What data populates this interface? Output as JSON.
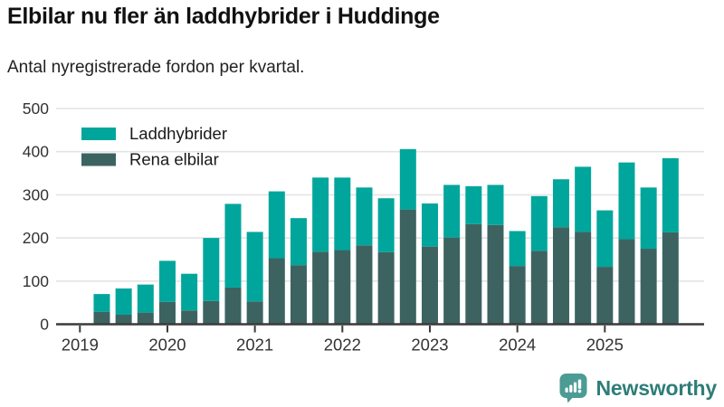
{
  "header": {
    "title": "Elbilar nu fler än laddhybrider i Huddinge",
    "subtitle": "Antal nyregistrerade fordon per kvartal."
  },
  "legend": {
    "items": [
      {
        "label": "Laddhybrider",
        "color": "#00a69c"
      },
      {
        "label": "Rena elbilar",
        "color": "#3d6361"
      }
    ]
  },
  "chart_data": {
    "type": "bar",
    "stacked": true,
    "title": "Elbilar nu fler än laddhybrider i Huddinge",
    "subtitle": "Antal nyregistrerade fordon per kvartal.",
    "xlabel": "",
    "ylabel": "",
    "ylim": [
      0,
      500
    ],
    "yticks": [
      0,
      100,
      200,
      300,
      400,
      500
    ],
    "xticks": [
      "2019",
      "2020",
      "2021",
      "2022",
      "2023",
      "2024",
      "2025"
    ],
    "grid": true,
    "legend_position": "top-left",
    "categories": [
      "2019 Q2",
      "2019 Q3",
      "2019 Q4",
      "2020 Q1",
      "2020 Q2",
      "2020 Q3",
      "2020 Q4",
      "2021 Q1",
      "2021 Q2",
      "2021 Q3",
      "2021 Q4",
      "2022 Q1",
      "2022 Q2",
      "2022 Q3",
      "2022 Q4",
      "2023 Q1",
      "2023 Q2",
      "2023 Q3",
      "2023 Q4",
      "2024 Q1",
      "2024 Q2",
      "2024 Q3",
      "2024 Q4",
      "2025 Q1",
      "2025 Q2",
      "2025 Q3",
      "2025 Q4"
    ],
    "series": [
      {
        "name": "Rena elbilar",
        "color": "#3d6361",
        "stack_position": "bottom",
        "values": [
          29,
          22,
          27,
          52,
          32,
          54,
          85,
          53,
          153,
          137,
          168,
          172,
          183,
          167,
          266,
          180,
          201,
          232,
          230,
          135,
          170,
          225,
          214,
          133,
          197,
          175,
          213
        ]
      },
      {
        "name": "Laddhybrider",
        "color": "#00a69c",
        "stack_position": "top",
        "values": [
          41,
          61,
          65,
          95,
          85,
          146,
          194,
          161,
          155,
          109,
          172,
          168,
          134,
          125,
          140,
          100,
          122,
          88,
          93,
          81,
          127,
          111,
          151,
          131,
          178,
          142,
          172
        ]
      }
    ],
    "totals": [
      70,
      83,
      92,
      147,
      117,
      200,
      279,
      214,
      308,
      246,
      340,
      340,
      317,
      292,
      406,
      280,
      323,
      320,
      323,
      216,
      297,
      336,
      365,
      264,
      375,
      317,
      385
    ]
  },
  "footer": {
    "brand": "Newsworthy"
  },
  "colors": {
    "laddhybrider": "#00a69c",
    "rena_elbilar": "#3d6361",
    "gridline": "#e4e4e4",
    "axis": "#3a3a3a",
    "tick_text": "#333333",
    "logo_icon": "#4c9b95",
    "logo_text": "#2e7d78"
  }
}
